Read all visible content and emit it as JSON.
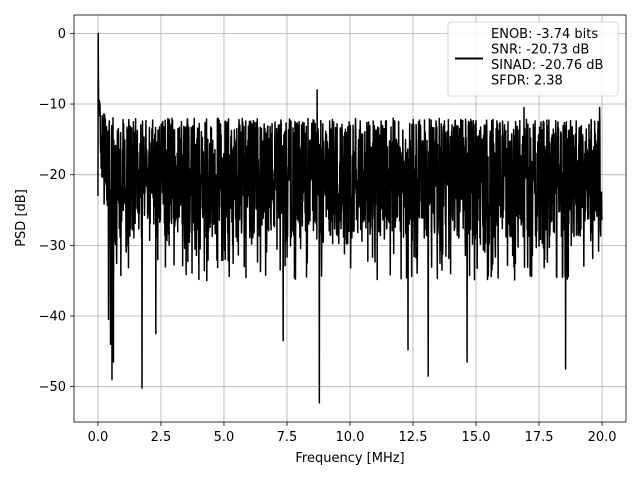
{
  "chart_data": {
    "type": "line",
    "title": "",
    "xlabel": "Frequency [MHz]",
    "ylabel": "PSD [dB]",
    "xlim": [
      -0.95,
      20.95
    ],
    "ylim": [
      -55,
      2.6
    ],
    "xticks": [
      0.0,
      2.5,
      5.0,
      7.5,
      10.0,
      12.5,
      15.0,
      17.5,
      20.0
    ],
    "xtick_labels": [
      "0.0",
      "2.5",
      "5.0",
      "7.5",
      "10.0",
      "12.5",
      "15.0",
      "17.5",
      "20.0"
    ],
    "yticks": [
      0,
      -10,
      -20,
      -30,
      -40,
      -50
    ],
    "ytick_labels": [
      "0",
      "−10",
      "−20",
      "−30",
      "−40",
      "−50"
    ],
    "grid": true,
    "legend_position": "top-right",
    "series": [
      {
        "name": "ENOB: -3.74 bits\nSNR: -20.73 dB\nSINAD: -20.76 dB\nSFDR: 2.38",
        "color": "#000000",
        "x_range": [
          0.0,
          20.0
        ],
        "num_points": 2048,
        "baseline_db": -20,
        "typical_band_db": [
          -29,
          -12
        ],
        "peaks": [
          {
            "x": 0.0,
            "y": 0.0
          },
          {
            "x": 0.02,
            "y": -7.0
          },
          {
            "x": 0.06,
            "y": -9.5
          },
          {
            "x": 8.7,
            "y": -8.0
          },
          {
            "x": 16.9,
            "y": -10.5
          },
          {
            "x": 19.9,
            "y": -10.5
          }
        ],
        "notches": [
          {
            "x": 0.42,
            "y": -40.5
          },
          {
            "x": 0.5,
            "y": -44.0
          },
          {
            "x": 0.56,
            "y": -49.0
          },
          {
            "x": 0.62,
            "y": -46.5
          },
          {
            "x": 1.75,
            "y": -50.2
          },
          {
            "x": 2.3,
            "y": -42.5
          },
          {
            "x": 7.35,
            "y": -43.5
          },
          {
            "x": 8.78,
            "y": -52.3
          },
          {
            "x": 12.3,
            "y": -44.8
          },
          {
            "x": 13.1,
            "y": -48.5
          },
          {
            "x": 14.65,
            "y": -46.5
          },
          {
            "x": 18.55,
            "y": -47.5
          }
        ]
      }
    ]
  }
}
